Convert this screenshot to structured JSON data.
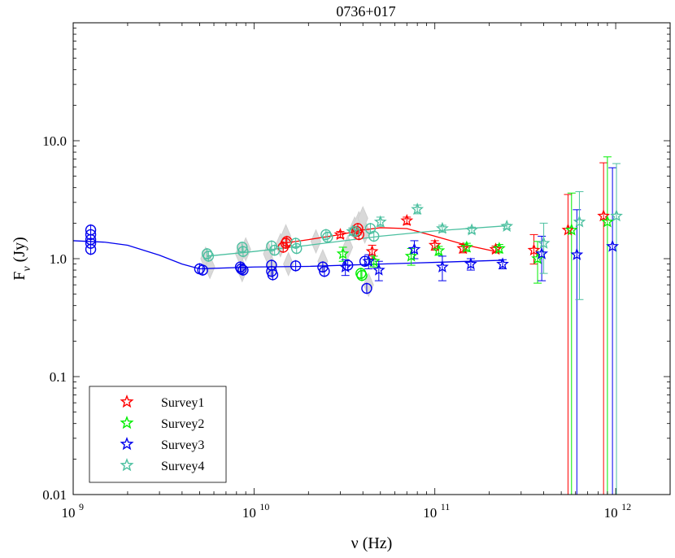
{
  "chart_data": {
    "type": "scatter",
    "title": "0736+017",
    "xlabel": "ν (Hz)",
    "ylabel": "F",
    "ylabel_sub": "ν",
    "ylabel_unit": "(Jy)",
    "xscale": "log",
    "yscale": "log",
    "xlim": [
      1000000000.0,
      2000000000000.0
    ],
    "ylim": [
      0.01,
      100
    ],
    "x_ticks": [
      {
        "value": 1000000000.0,
        "base": "10",
        "exp": "9"
      },
      {
        "value": 10000000000.0,
        "base": "10",
        "exp": "10"
      },
      {
        "value": 100000000000.0,
        "base": "10",
        "exp": "11"
      },
      {
        "value": 1000000000000.0,
        "base": "10",
        "exp": "12"
      }
    ],
    "y_ticks": [
      {
        "value": 0.01,
        "label": "0.01"
      },
      {
        "value": 0.1,
        "label": "0.1"
      },
      {
        "value": 1,
        "label": "1.0"
      },
      {
        "value": 10,
        "label": "10.0"
      }
    ],
    "legend_position": "bottom-left",
    "grey_background_points": [
      [
        5400000000.0,
        1.0
      ],
      [
        5700000000.0,
        0.85
      ],
      [
        8400000000.0,
        1.1
      ],
      [
        8600000000.0,
        0.8
      ],
      [
        9000000000.0,
        1.2
      ],
      [
        12000000000.0,
        1.1
      ],
      [
        12500000000.0,
        0.85
      ],
      [
        14000000000.0,
        1.3
      ],
      [
        15000000000.0,
        1.55
      ],
      [
        15500000000.0,
        0.9
      ],
      [
        22000000000.0,
        1.4
      ],
      [
        24000000000.0,
        0.95
      ],
      [
        33000000000.0,
        1.25
      ],
      [
        36000000000.0,
        1.8
      ],
      [
        38000000000.0,
        2.0
      ],
      [
        41000000000.0,
        1.7
      ],
      [
        43000000000.0,
        0.6
      ],
      [
        40000000000.0,
        2.2
      ]
    ],
    "series": [
      {
        "name": "Survey1",
        "color": "#ff0000",
        "circles": [
          [
            14500000000.0,
            1.25
          ],
          [
            15000000000.0,
            1.35
          ],
          [
            15200000000.0,
            1.4
          ],
          [
            37000000000.0,
            1.7
          ],
          [
            37500000000.0,
            1.8
          ],
          [
            38000000000.0,
            1.6
          ]
        ],
        "stars": [
          {
            "x": 30000000000.0,
            "y": 1.6,
            "lo": 1.5,
            "hi": 1.7
          },
          {
            "x": 45000000000.0,
            "y": 1.15,
            "lo": 1.0,
            "hi": 1.3
          },
          {
            "x": 70000000000.0,
            "y": 2.1,
            "lo": 1.95,
            "hi": 2.25
          },
          {
            "x": 100000000000.0,
            "y": 1.3,
            "lo": 1.18,
            "hi": 1.42
          },
          {
            "x": 143000000000.0,
            "y": 1.22,
            "lo": 1.12,
            "hi": 1.32
          },
          {
            "x": 217000000000.0,
            "y": 1.2,
            "lo": 1.12,
            "hi": 1.28
          },
          {
            "x": 353000000000.0,
            "y": 1.18,
            "lo": 0.9,
            "hi": 1.6
          },
          {
            "x": 545000000000.0,
            "y": 1.75,
            "lo": 0.01,
            "hi": 3.5
          },
          {
            "x": 857000000000.0,
            "y": 2.3,
            "lo": 0.01,
            "hi": 6.5
          }
        ],
        "fit": [
          [
            14500000000.0,
            1.35
          ],
          [
            20000000000.0,
            1.45
          ],
          [
            30000000000.0,
            1.6
          ],
          [
            40000000000.0,
            1.75
          ],
          [
            50000000000.0,
            1.83
          ],
          [
            70000000000.0,
            1.8
          ],
          [
            100000000000.0,
            1.55
          ],
          [
            150000000000.0,
            1.3
          ],
          [
            217000000000.0,
            1.15
          ]
        ]
      },
      {
        "name": "Survey2",
        "color": "#00ee00",
        "circles": [
          [
            39000000000.0,
            0.75
          ],
          [
            39500000000.0,
            0.72
          ]
        ],
        "stars": [
          {
            "x": 31000000000.0,
            "y": 1.1,
            "lo": 0.95,
            "hi": 1.25
          },
          {
            "x": 46000000000.0,
            "y": 0.95,
            "lo": 0.85,
            "hi": 1.05
          },
          {
            "x": 74000000000.0,
            "y": 1.05,
            "lo": 0.88,
            "hi": 1.22
          },
          {
            "x": 105000000000.0,
            "y": 1.17,
            "lo": 1.07,
            "hi": 1.27
          },
          {
            "x": 150000000000.0,
            "y": 1.25,
            "lo": 1.15,
            "hi": 1.35
          },
          {
            "x": 227000000000.0,
            "y": 1.22,
            "lo": 1.12,
            "hi": 1.32
          },
          {
            "x": 370000000000.0,
            "y": 1.0,
            "lo": 0.62,
            "hi": 1.4
          },
          {
            "x": 570000000000.0,
            "y": 1.75,
            "lo": 0.01,
            "hi": 3.6
          },
          {
            "x": 900000000000.0,
            "y": 2.05,
            "lo": 0.01,
            "hi": 7.3
          }
        ],
        "fit": []
      },
      {
        "name": "Survey3",
        "color": "#0000ee",
        "circles": [
          [
            1250000000.0,
            1.75
          ],
          [
            1250000000.0,
            1.6
          ],
          [
            1250000000.0,
            1.45
          ],
          [
            1250000000.0,
            1.35
          ],
          [
            1250000000.0,
            1.2
          ],
          [
            5000000000.0,
            0.82
          ],
          [
            5200000000.0,
            0.8
          ],
          [
            8400000000.0,
            0.85
          ],
          [
            8500000000.0,
            0.82
          ],
          [
            8700000000.0,
            0.8
          ],
          [
            12500000000.0,
            0.88
          ],
          [
            12500000000.0,
            0.78
          ],
          [
            12700000000.0,
            0.73
          ],
          [
            17000000000.0,
            0.87
          ],
          [
            24000000000.0,
            0.85
          ],
          [
            24500000000.0,
            0.78
          ],
          [
            33000000000.0,
            0.88
          ],
          [
            41000000000.0,
            0.95
          ],
          [
            42000000000.0,
            0.56
          ]
        ],
        "stars": [
          {
            "x": 32000000000.0,
            "y": 0.85,
            "lo": 0.72,
            "hi": 0.98
          },
          {
            "x": 43000000000.0,
            "y": 0.95,
            "lo": 0.82,
            "hi": 1.08
          },
          {
            "x": 49000000000.0,
            "y": 0.8,
            "lo": 0.65,
            "hi": 0.95
          },
          {
            "x": 77000000000.0,
            "y": 1.2,
            "lo": 1.0,
            "hi": 1.42
          },
          {
            "x": 110000000000.0,
            "y": 0.85,
            "lo": 0.65,
            "hi": 1.05
          },
          {
            "x": 158000000000.0,
            "y": 0.9,
            "lo": 0.8,
            "hi": 1.0
          },
          {
            "x": 237000000000.0,
            "y": 0.9,
            "lo": 0.82,
            "hi": 0.98
          },
          {
            "x": 390000000000.0,
            "y": 1.1,
            "lo": 0.65,
            "hi": 1.55
          },
          {
            "x": 610000000000.0,
            "y": 1.08,
            "lo": 0.01,
            "hi": 2.6
          },
          {
            "x": 960000000000.0,
            "y": 1.27,
            "lo": 0.01,
            "hi": 5.9
          }
        ],
        "fit": [
          [
            1000000000.0,
            1.42
          ],
          [
            1500000000.0,
            1.38
          ],
          [
            2000000000.0,
            1.3
          ],
          [
            3000000000.0,
            1.07
          ],
          [
            4000000000.0,
            0.9
          ],
          [
            5000000000.0,
            0.82
          ],
          [
            10000000000.0,
            0.85
          ],
          [
            20000000000.0,
            0.86
          ],
          [
            50000000000.0,
            0.9
          ],
          [
            100000000000.0,
            0.93
          ],
          [
            237000000000.0,
            0.97
          ]
        ]
      },
      {
        "name": "Survey4",
        "color": "#4cc0a0",
        "circles": [
          [
            5500000000.0,
            1.1
          ],
          [
            5600000000.0,
            1.05
          ],
          [
            8600000000.0,
            1.25
          ],
          [
            8700000000.0,
            1.15
          ],
          [
            12500000000.0,
            1.28
          ],
          [
            13000000000.0,
            1.18
          ],
          [
            17000000000.0,
            1.35
          ],
          [
            17200000000.0,
            1.22
          ],
          [
            25000000000.0,
            1.6
          ],
          [
            25500000000.0,
            1.52
          ],
          [
            36000000000.0,
            1.7
          ],
          [
            44000000000.0,
            1.8
          ],
          [
            46000000000.0,
            1.55
          ]
        ],
        "stars": [
          {
            "x": 35000000000.0,
            "y": 1.7,
            "lo": 1.58,
            "hi": 1.82
          },
          {
            "x": 50000000000.0,
            "y": 2.05,
            "lo": 1.88,
            "hi": 2.25
          },
          {
            "x": 80000000000.0,
            "y": 2.62,
            "lo": 2.4,
            "hi": 2.85
          },
          {
            "x": 110000000000.0,
            "y": 1.8,
            "lo": 1.68,
            "hi": 1.92
          },
          {
            "x": 160000000000.0,
            "y": 1.75,
            "lo": 1.65,
            "hi": 1.85
          },
          {
            "x": 250000000000.0,
            "y": 1.88,
            "lo": 1.8,
            "hi": 1.96
          },
          {
            "x": 400000000000.0,
            "y": 1.35,
            "lo": 0.75,
            "hi": 2.0
          },
          {
            "x": 630000000000.0,
            "y": 2.05,
            "lo": 0.45,
            "hi": 3.7
          },
          {
            "x": 1010000000000.0,
            "y": 2.3,
            "lo": 0.01,
            "hi": 6.4
          }
        ],
        "fit": [
          [
            5500000000.0,
            1.05
          ],
          [
            10000000000.0,
            1.15
          ],
          [
            20000000000.0,
            1.3
          ],
          [
            50000000000.0,
            1.55
          ],
          [
            100000000000.0,
            1.72
          ],
          [
            250000000000.0,
            1.9
          ]
        ]
      }
    ]
  }
}
